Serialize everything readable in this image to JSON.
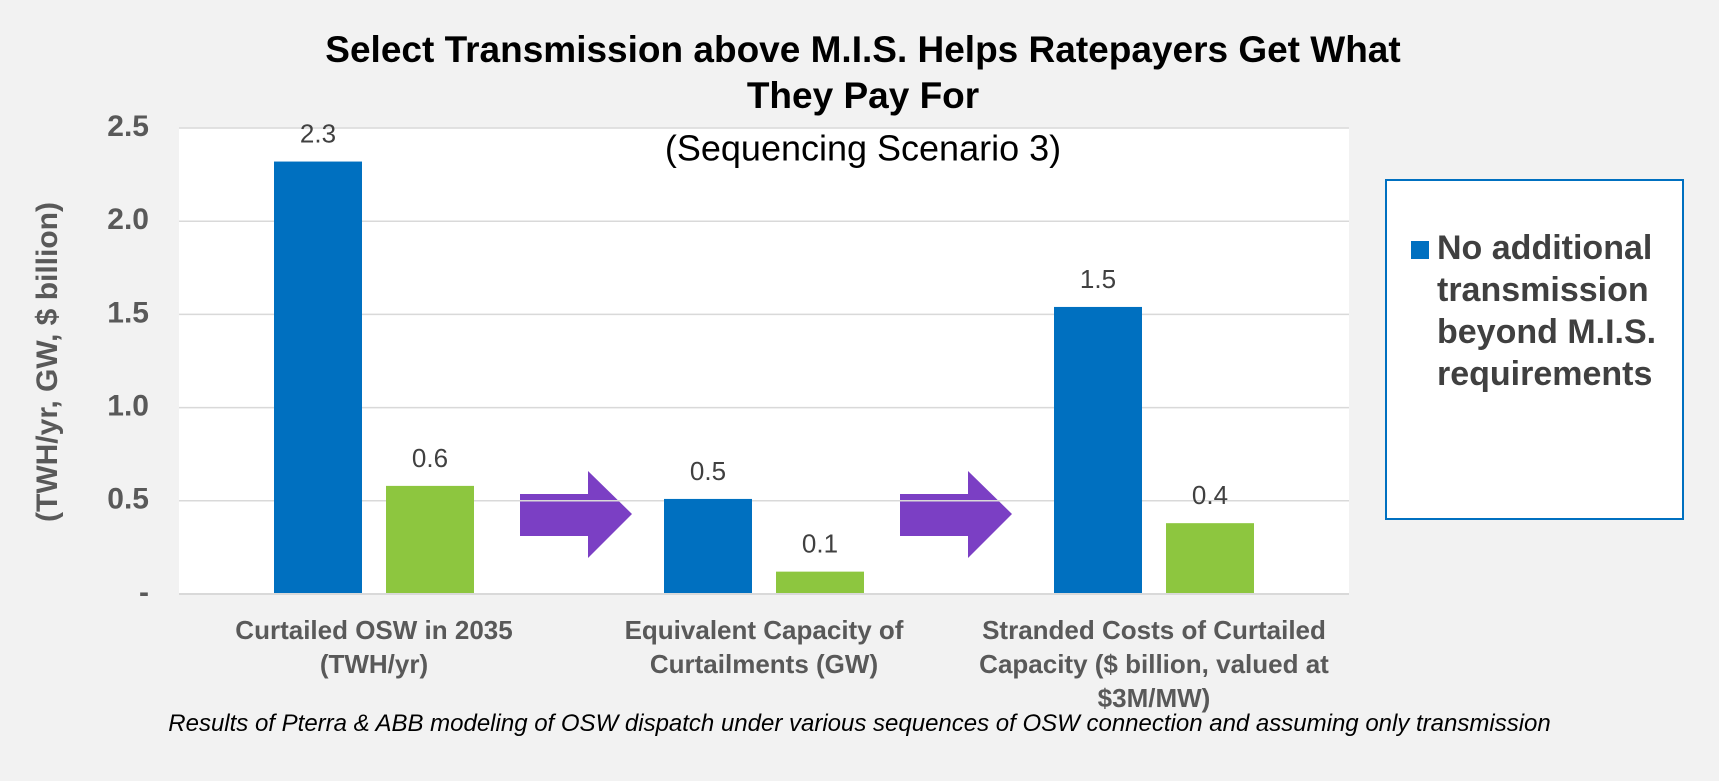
{
  "chart_data": {
    "type": "bar",
    "title": "Select Transmission above M.I.S. Helps Ratepayers Get What They Pay For",
    "subtitle": "(Sequencing Scenario 3)",
    "y_label": "(TWH/yr, GW, $ billion)",
    "categories": [
      "Curtailed OSW in 2035 (TWH/yr)",
      "Equivalent Capacity of Curtailments (GW)",
      "Stranded Costs of Curtailed Capacity ($ billion, valued at $3M/MW)"
    ],
    "series": [
      {
        "name": "No additional transmission beyond M.I.S. requirements",
        "color": "#0070c0",
        "values": [
          2.32,
          0.51,
          1.54
        ],
        "value_labels": [
          "2.3",
          "0.5",
          "1.5"
        ]
      },
      {
        "color": "#8dc63f",
        "values": [
          0.58,
          0.12,
          0.38
        ],
        "value_labels": [
          "0.6",
          "0.1",
          "0.4"
        ]
      }
    ],
    "ylim": [
      0,
      2.5
    ],
    "yticks": [
      {
        "value": 0,
        "label": "-"
      },
      0.5,
      {
        "value": 1,
        "label": "1.0"
      },
      1.5,
      {
        "value": 2,
        "label": "2.0"
      },
      2.5
    ],
    "grid": true,
    "legend": "right",
    "footnote": "Results of Pterra & ABB modeling of OSW dispatch under various sequences of OSW connection and assuming only transmission"
  }
}
